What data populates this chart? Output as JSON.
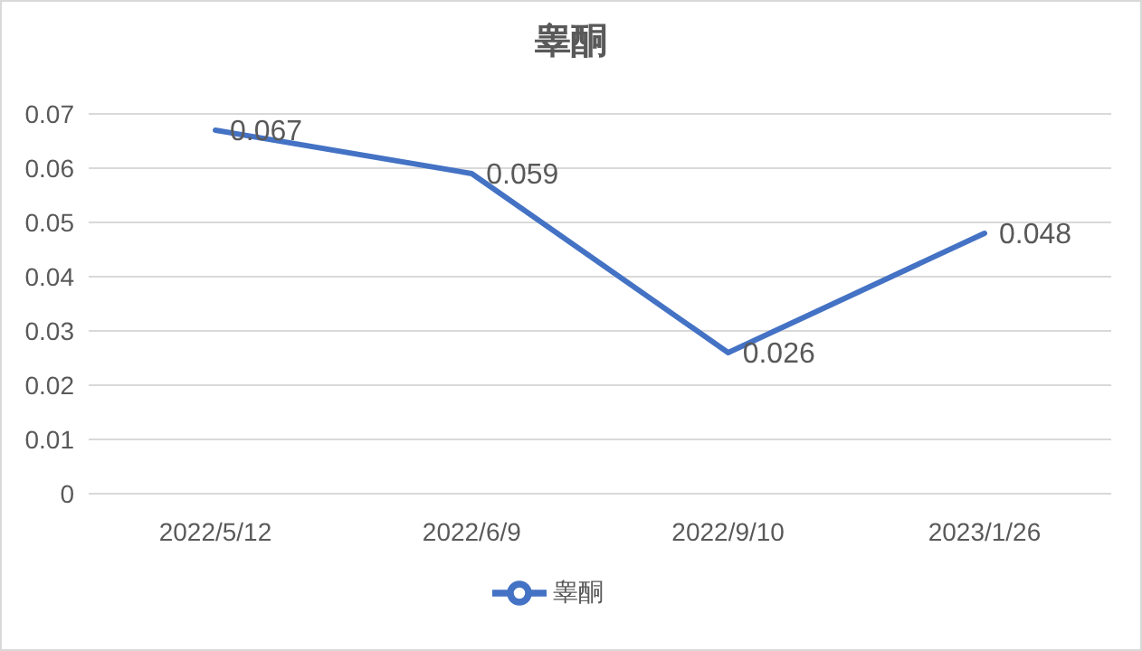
{
  "chart_data": {
    "type": "line",
    "title": "睾酮",
    "categories": [
      "2022/5/12",
      "2022/6/9",
      "2022/9/10",
      "2023/1/26"
    ],
    "series": [
      {
        "name": "睾酮",
        "color": "#4472c4",
        "values": [
          0.067,
          0.059,
          0.026,
          0.048
        ]
      }
    ],
    "ylim": [
      0,
      0.07
    ],
    "yticks": [
      0,
      0.01,
      0.02,
      0.03,
      0.04,
      0.05,
      0.06,
      0.07
    ],
    "grid": "y",
    "legend": "bottom",
    "data_labels": true,
    "marker": "none",
    "line_style": "solid"
  }
}
